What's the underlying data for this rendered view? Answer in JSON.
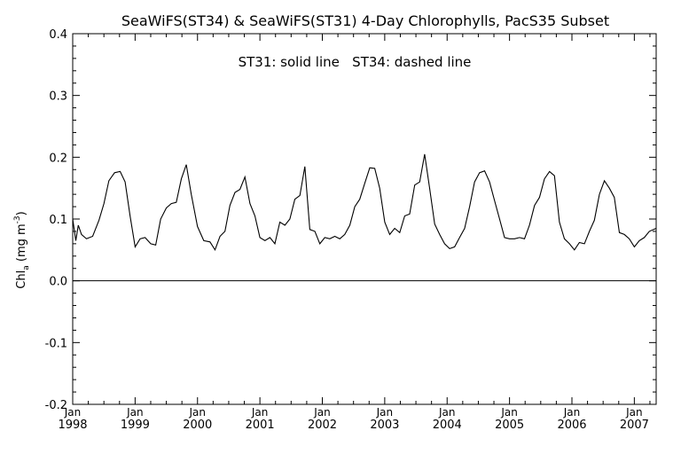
{
  "chart_data": {
    "type": "line",
    "title": "SeaWiFS(ST34) & SeaWiFS(ST31) 4-Day Chlorophylls, PacS35 Subset",
    "annotation": "ST31: solid line   ST34: dashed line",
    "ylabel": {
      "main": "Chl",
      "sub": "a",
      "unit_open": " (mg m",
      "sup": "-3",
      "unit_close": ")"
    },
    "ylim": [
      -0.2,
      0.4
    ],
    "yticks": [
      "-0.2",
      "-0.1",
      "0.0",
      "0.1",
      "0.2",
      "0.3",
      "0.4"
    ],
    "yticks_values": [
      -0.2,
      -0.1,
      0.0,
      0.1,
      0.2,
      0.3,
      0.4
    ],
    "xlim": [
      1998.0,
      2007.35
    ],
    "xticks": [
      {
        "value": 1998,
        "top": "Jan",
        "bottom": "1998"
      },
      {
        "value": 1999,
        "top": "Jan",
        "bottom": "1999"
      },
      {
        "value": 2000,
        "top": "Jan",
        "bottom": "2000"
      },
      {
        "value": 2001,
        "top": "Jan",
        "bottom": "2001"
      },
      {
        "value": 2002,
        "top": "Jan",
        "bottom": "2002"
      },
      {
        "value": 2003,
        "top": "Jan",
        "bottom": "2003"
      },
      {
        "value": 2004,
        "top": "Jan",
        "bottom": "2004"
      },
      {
        "value": 2005,
        "top": "Jan",
        "bottom": "2005"
      },
      {
        "value": 2006,
        "top": "Jan",
        "bottom": "2006"
      },
      {
        "value": 2007,
        "top": "Jan",
        "bottom": "2007"
      }
    ],
    "reference_line": 0.0,
    "grid": false,
    "series": [
      {
        "style": "solid",
        "points": [
          [
            1998.0,
            0.1
          ],
          [
            1998.05,
            0.065
          ],
          [
            1998.09,
            0.09
          ],
          [
            1998.14,
            0.075
          ],
          [
            1998.22,
            0.068
          ],
          [
            1998.32,
            0.072
          ],
          [
            1998.42,
            0.098
          ],
          [
            1998.5,
            0.125
          ],
          [
            1998.58,
            0.162
          ],
          [
            1998.67,
            0.175
          ],
          [
            1998.76,
            0.177
          ],
          [
            1998.84,
            0.16
          ],
          [
            1998.92,
            0.105
          ],
          [
            1999.0,
            0.055
          ],
          [
            1999.08,
            0.068
          ],
          [
            1999.16,
            0.07
          ],
          [
            1999.25,
            0.06
          ],
          [
            1999.33,
            0.058
          ],
          [
            1999.41,
            0.1
          ],
          [
            1999.5,
            0.118
          ],
          [
            1999.58,
            0.125
          ],
          [
            1999.66,
            0.127
          ],
          [
            1999.74,
            0.165
          ],
          [
            1999.82,
            0.188
          ],
          [
            1999.9,
            0.14
          ],
          [
            2000.0,
            0.088
          ],
          [
            2000.1,
            0.065
          ],
          [
            2000.2,
            0.063
          ],
          [
            2000.28,
            0.05
          ],
          [
            2000.36,
            0.072
          ],
          [
            2000.44,
            0.08
          ],
          [
            2000.52,
            0.122
          ],
          [
            2000.6,
            0.143
          ],
          [
            2000.68,
            0.148
          ],
          [
            2000.76,
            0.168
          ],
          [
            2000.84,
            0.125
          ],
          [
            2000.92,
            0.105
          ],
          [
            2001.0,
            0.07
          ],
          [
            2001.08,
            0.065
          ],
          [
            2001.16,
            0.07
          ],
          [
            2001.24,
            0.06
          ],
          [
            2001.32,
            0.095
          ],
          [
            2001.4,
            0.09
          ],
          [
            2001.48,
            0.1
          ],
          [
            2001.56,
            0.132
          ],
          [
            2001.64,
            0.138
          ],
          [
            2001.72,
            0.185
          ],
          [
            2001.8,
            0.083
          ],
          [
            2001.88,
            0.08
          ],
          [
            2001.96,
            0.06
          ],
          [
            2002.04,
            0.07
          ],
          [
            2002.12,
            0.068
          ],
          [
            2002.2,
            0.072
          ],
          [
            2002.28,
            0.068
          ],
          [
            2002.36,
            0.075
          ],
          [
            2002.44,
            0.09
          ],
          [
            2002.52,
            0.12
          ],
          [
            2002.6,
            0.132
          ],
          [
            2002.68,
            0.158
          ],
          [
            2002.76,
            0.183
          ],
          [
            2002.84,
            0.182
          ],
          [
            2002.92,
            0.15
          ],
          [
            2003.0,
            0.095
          ],
          [
            2003.08,
            0.075
          ],
          [
            2003.16,
            0.085
          ],
          [
            2003.24,
            0.078
          ],
          [
            2003.32,
            0.105
          ],
          [
            2003.4,
            0.108
          ],
          [
            2003.48,
            0.155
          ],
          [
            2003.56,
            0.16
          ],
          [
            2003.64,
            0.205
          ],
          [
            2003.72,
            0.15
          ],
          [
            2003.8,
            0.092
          ],
          [
            2003.88,
            0.075
          ],
          [
            2003.96,
            0.06
          ],
          [
            2004.04,
            0.052
          ],
          [
            2004.12,
            0.055
          ],
          [
            2004.2,
            0.07
          ],
          [
            2004.28,
            0.085
          ],
          [
            2004.36,
            0.12
          ],
          [
            2004.44,
            0.16
          ],
          [
            2004.52,
            0.175
          ],
          [
            2004.6,
            0.178
          ],
          [
            2004.68,
            0.16
          ],
          [
            2004.76,
            0.13
          ],
          [
            2004.84,
            0.1
          ],
          [
            2004.92,
            0.07
          ],
          [
            2005.0,
            0.068
          ],
          [
            2005.08,
            0.068
          ],
          [
            2005.16,
            0.07
          ],
          [
            2005.24,
            0.068
          ],
          [
            2005.32,
            0.09
          ],
          [
            2005.4,
            0.122
          ],
          [
            2005.48,
            0.135
          ],
          [
            2005.56,
            0.165
          ],
          [
            2005.64,
            0.177
          ],
          [
            2005.72,
            0.17
          ],
          [
            2005.8,
            0.095
          ],
          [
            2005.88,
            0.068
          ],
          [
            2005.96,
            0.06
          ],
          [
            2006.04,
            0.05
          ],
          [
            2006.12,
            0.062
          ],
          [
            2006.2,
            0.06
          ],
          [
            2006.28,
            0.08
          ],
          [
            2006.36,
            0.098
          ],
          [
            2006.44,
            0.14
          ],
          [
            2006.52,
            0.162
          ],
          [
            2006.6,
            0.15
          ],
          [
            2006.68,
            0.135
          ],
          [
            2006.76,
            0.078
          ],
          [
            2006.84,
            0.075
          ],
          [
            2006.92,
            0.068
          ],
          [
            2007.0,
            0.055
          ],
          [
            2007.08,
            0.065
          ],
          [
            2007.16,
            0.07
          ],
          [
            2007.24,
            0.08
          ],
          [
            2007.35,
            0.085
          ]
        ]
      }
    ]
  }
}
